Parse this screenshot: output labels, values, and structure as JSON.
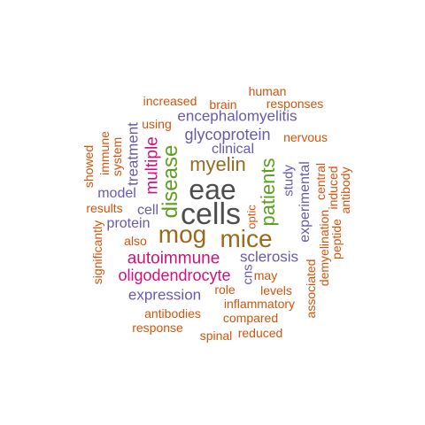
{
  "palette": {
    "gray": "#4d4d4d",
    "brown": "#9a6a1c",
    "green": "#5aa01e",
    "magenta": "#d0117a",
    "purple": "#6a5aa8",
    "orange": "#d2540c"
  },
  "words": {
    "cells": "cells",
    "eae": "eae",
    "mog": "mog",
    "mice": "mice",
    "myelin": "myelin",
    "disease": "disease",
    "patients": "patients",
    "multiple": "multiple",
    "autoimmune": "autoimmune",
    "oligodendrocyte": "oligodendrocyte",
    "glycoprotein": "glycoprotein",
    "encephalomyelitis": "encephalomyelitis",
    "sclerosis": "sclerosis",
    "clinical": "clinical",
    "experimental": "experimental",
    "expression": "expression",
    "treatment": "treatment",
    "model": "model",
    "protein": "protein",
    "cell": "cell",
    "study": "study",
    "cns": "cns",
    "increased": "increased",
    "brain": "brain",
    "human": "human",
    "responses": "responses",
    "using": "using",
    "nervous": "nervous",
    "showed": "showed",
    "immune": "immune",
    "system": "system",
    "results": "results",
    "significantly": "significantly",
    "also": "also",
    "optic": "optic",
    "central": "central",
    "induced": "induced",
    "antibody": "antibody",
    "demyelination": "demyelination",
    "peptide": "peptide",
    "associated": "associated",
    "may": "may",
    "levels": "levels",
    "role": "role",
    "inflammatory": "inflammatory",
    "antibodies": "antibodies",
    "compared": "compared",
    "response": "response",
    "spinal": "spinal",
    "reduced": "reduced"
  }
}
